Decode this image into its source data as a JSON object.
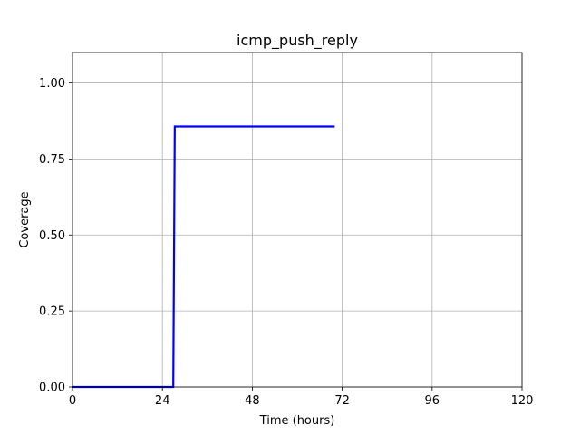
{
  "chart_data": {
    "type": "line",
    "title": "icmp_push_reply",
    "xlabel": "Time (hours)",
    "ylabel": "Coverage",
    "xlim": [
      0,
      120
    ],
    "ylim": [
      0,
      1.1
    ],
    "xticks": [
      0,
      24,
      48,
      72,
      96,
      120
    ],
    "xtick_labels": [
      "0",
      "24",
      "48",
      "72",
      "96",
      "120"
    ],
    "yticks": [
      0,
      0.25,
      0.5,
      0.75,
      1.0
    ],
    "ytick_labels": [
      "0.00",
      "0.25",
      "0.50",
      "0.75",
      "1.00"
    ],
    "grid": true,
    "series": [
      {
        "color": "#0000ff",
        "x": [
          0,
          26.9,
          27.3,
          70
        ],
        "y": [
          0,
          0,
          0.857,
          0.857
        ]
      }
    ]
  }
}
